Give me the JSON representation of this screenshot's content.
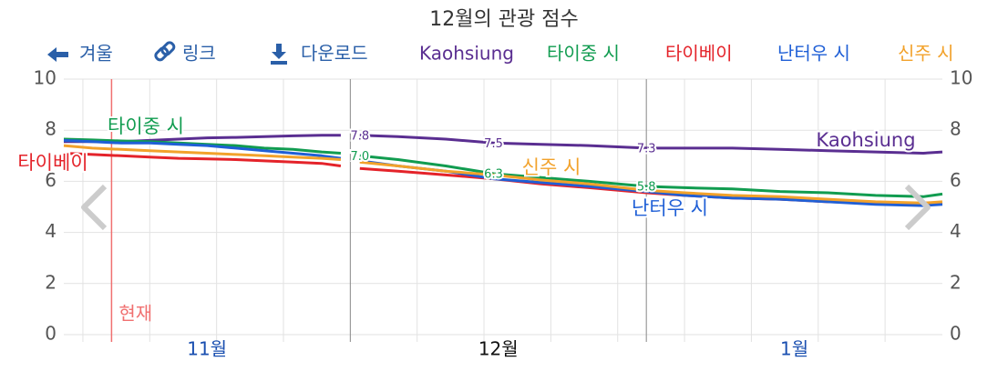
{
  "chart_data": {
    "type": "line",
    "title": "12월의 관광 점수",
    "toolbar": [
      "겨울",
      "링크",
      "다운로드"
    ],
    "x": [
      0,
      3,
      6,
      9,
      12,
      15,
      18,
      21,
      24,
      27,
      29,
      30,
      31,
      35,
      40,
      45,
      50,
      55,
      61,
      65,
      70,
      75,
      80,
      85,
      90,
      92
    ],
    "series": [
      {
        "name": "Kaohsiung",
        "color": "#5a2e91",
        "values": [
          7.55,
          7.55,
          7.55,
          7.6,
          7.65,
          7.7,
          7.72,
          7.75,
          7.78,
          7.8,
          7.8,
          null,
          7.8,
          7.75,
          7.65,
          7.5,
          7.45,
          7.4,
          7.3,
          7.3,
          7.3,
          7.25,
          7.2,
          7.15,
          7.1,
          7.15
        ],
        "value_labels": [
          null,
          null,
          null,
          null,
          null,
          null,
          null,
          null,
          null,
          null,
          null,
          null,
          "7.8",
          null,
          null,
          "7.5",
          null,
          null,
          "7.3",
          null,
          null,
          null,
          null,
          null,
          null,
          null
        ]
      },
      {
        "name": "타이중 시",
        "color": "#119c50",
        "values": [
          7.65,
          7.62,
          7.58,
          7.55,
          7.5,
          7.45,
          7.4,
          7.3,
          7.25,
          7.15,
          7.1,
          null,
          7.0,
          6.85,
          6.6,
          6.3,
          6.15,
          6.0,
          5.8,
          5.75,
          5.7,
          5.6,
          5.55,
          5.45,
          5.4,
          5.5
        ],
        "value_labels": [
          null,
          null,
          null,
          null,
          null,
          null,
          null,
          null,
          null,
          null,
          null,
          null,
          "7.0",
          null,
          null,
          "6.3",
          null,
          null,
          "5.8",
          null,
          null,
          null,
          null,
          null,
          null,
          null
        ]
      },
      {
        "name": "타이베이",
        "color": "#e4232a",
        "values": [
          7.1,
          7.05,
          7.0,
          6.95,
          6.9,
          6.88,
          6.85,
          6.8,
          6.75,
          6.7,
          6.6,
          null,
          6.5,
          6.4,
          6.25,
          6.1,
          5.9,
          5.75,
          5.55,
          5.45,
          5.35,
          5.3,
          5.2,
          5.15,
          5.1,
          5.15
        ]
      },
      {
        "name": "난터우 시",
        "color": "#1f5fd6",
        "values": [
          7.6,
          7.55,
          7.5,
          7.5,
          7.45,
          7.4,
          7.3,
          7.2,
          7.1,
          7.0,
          6.9,
          null,
          6.8,
          6.6,
          6.4,
          6.1,
          5.95,
          5.8,
          5.6,
          5.45,
          5.35,
          5.3,
          5.2,
          5.1,
          5.05,
          5.1
        ]
      },
      {
        "name": "신주 시",
        "color": "#f2a22b",
        "values": [
          7.4,
          7.3,
          7.25,
          7.2,
          7.15,
          7.1,
          7.05,
          7.0,
          6.95,
          6.9,
          6.85,
          null,
          6.75,
          6.6,
          6.4,
          6.25,
          6.05,
          5.9,
          5.65,
          5.55,
          5.45,
          5.4,
          5.3,
          5.2,
          5.15,
          5.2
        ]
      }
    ],
    "xlim": [
      0,
      92
    ],
    "xticks": [
      {
        "value": 15,
        "label": "11월"
      },
      {
        "value": 45.5,
        "label": "12월"
      },
      {
        "value": 76.5,
        "label": "1월"
      }
    ],
    "month_lines": [
      30,
      61
    ],
    "minor_grid": [
      2,
      9,
      16,
      23,
      37,
      44,
      51,
      58,
      65,
      72,
      79,
      86
    ],
    "now": 5,
    "now_label": "현재",
    "ylim": [
      0,
      10
    ],
    "yticks": [
      0,
      2,
      4,
      6,
      8,
      10
    ],
    "grid": true
  }
}
